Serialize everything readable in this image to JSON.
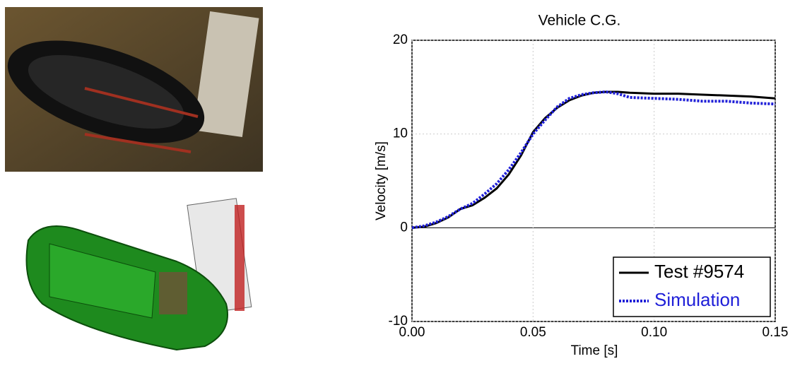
{
  "chart_data": {
    "type": "line",
    "title": "Vehicle C.G.",
    "x_label": "Time [s]",
    "y_label": "Velocity [m/s]",
    "x": [
      0,
      0.005,
      0.01,
      0.015,
      0.02,
      0.025,
      0.03,
      0.035,
      0.04,
      0.045,
      0.05,
      0.055,
      0.06,
      0.065,
      0.07,
      0.075,
      0.08,
      0.085,
      0.09,
      0.1,
      0.11,
      0.12,
      0.13,
      0.14,
      0.15
    ],
    "series": [
      {
        "name": "Test #9574",
        "color": "#000000",
        "dash": false,
        "values": [
          0,
          0.1,
          0.5,
          1.1,
          2.0,
          2.4,
          3.2,
          4.2,
          5.7,
          7.7,
          10.2,
          11.7,
          12.8,
          13.6,
          14.1,
          14.4,
          14.5,
          14.5,
          14.4,
          14.3,
          14.3,
          14.2,
          14.1,
          14.0,
          13.8
        ]
      },
      {
        "name": "Simulation",
        "color": "#1f1fd8",
        "dash": true,
        "values": [
          0,
          0.2,
          0.6,
          1.2,
          2.0,
          2.6,
          3.6,
          4.7,
          6.2,
          8.0,
          10.0,
          11.5,
          12.9,
          13.8,
          14.2,
          14.4,
          14.5,
          14.3,
          13.9,
          13.8,
          13.7,
          13.5,
          13.5,
          13.3,
          13.2
        ]
      }
    ],
    "xlim": [
      0,
      0.15
    ],
    "xticks": [
      {
        "value": 0,
        "label": "0.00"
      },
      0.05,
      {
        "value": 0.1,
        "label": "0.10"
      },
      0.15
    ],
    "ylim": [
      -10,
      20
    ],
    "yticks": [
      -10,
      0,
      10,
      20
    ],
    "grid": true,
    "legend": "lower right"
  }
}
